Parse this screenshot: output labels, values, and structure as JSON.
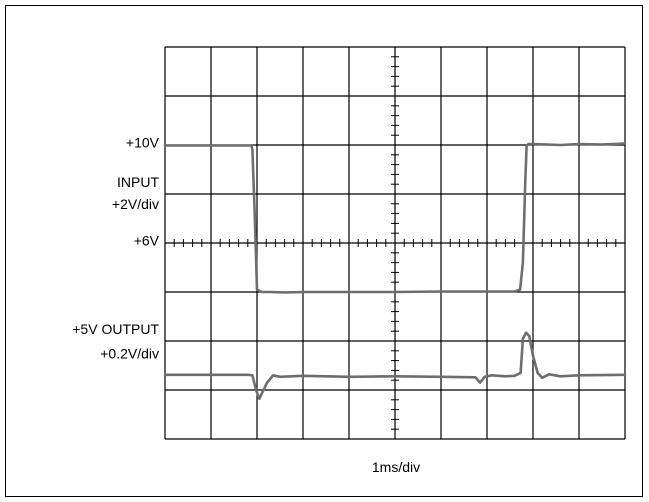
{
  "chart_data": {
    "type": "line",
    "title": "",
    "xlabel": "1ms/div",
    "ylabel": "",
    "grid": true,
    "divisions": {
      "x": 10,
      "y": 8
    },
    "x_units": "ms",
    "xlim": [
      0,
      10
    ],
    "y_units": "div",
    "ylim": [
      0,
      8
    ],
    "colors": {
      "trace": "#6e6e6e",
      "grid": "#000000"
    },
    "labels": [
      {
        "id": "input-10v",
        "text": "+10V",
        "y_div": 6.05
      },
      {
        "id": "input-name",
        "text": "INPUT",
        "y_div": 5.25
      },
      {
        "id": "input-scale",
        "text": "+2V/div",
        "y_div": 4.8
      },
      {
        "id": "input-6v",
        "text": "+6V",
        "y_div": 4.05
      },
      {
        "id": "output-name",
        "text": "+5V OUTPUT",
        "y_div": 2.25
      },
      {
        "id": "output-scale",
        "text": "+0.2V/div",
        "y_div": 1.75
      }
    ],
    "series": [
      {
        "id": "input-trace",
        "x": [
          0,
          1.8,
          1.88,
          1.9,
          1.95,
          2.0,
          2.1,
          2.3,
          2.6,
          3.0,
          4.0,
          5.0,
          6.0,
          7.0,
          7.6,
          7.72,
          7.78,
          7.83,
          7.86,
          7.9,
          8.0,
          8.3,
          8.6,
          9.0,
          9.5,
          10.0
        ],
        "y": [
          5.99,
          5.99,
          5.99,
          5.9,
          4.6,
          3.05,
          3.0,
          3.0,
          2.99,
          3.0,
          3.0,
          3.0,
          3.01,
          3.01,
          3.01,
          3.05,
          3.6,
          5.2,
          5.98,
          6.02,
          6.02,
          6.01,
          6.0,
          6.02,
          6.01,
          6.03
        ]
      },
      {
        "id": "output-trace",
        "x": [
          0,
          1.0,
          1.8,
          1.9,
          1.98,
          2.05,
          2.13,
          2.22,
          2.35,
          2.5,
          3.0,
          4.0,
          5.0,
          6.0,
          6.75,
          6.85,
          6.95,
          7.1,
          7.4,
          7.6,
          7.73,
          7.78,
          7.85,
          7.92,
          8.0,
          8.1,
          8.2,
          8.35,
          8.6,
          9.0,
          10.0
        ],
        "y": [
          1.31,
          1.31,
          1.31,
          1.3,
          1.0,
          0.82,
          0.98,
          1.15,
          1.3,
          1.27,
          1.29,
          1.27,
          1.28,
          1.27,
          1.26,
          1.15,
          1.27,
          1.3,
          1.28,
          1.29,
          1.35,
          2.05,
          2.17,
          2.1,
          1.7,
          1.35,
          1.25,
          1.32,
          1.28,
          1.3,
          1.31
        ]
      }
    ]
  }
}
